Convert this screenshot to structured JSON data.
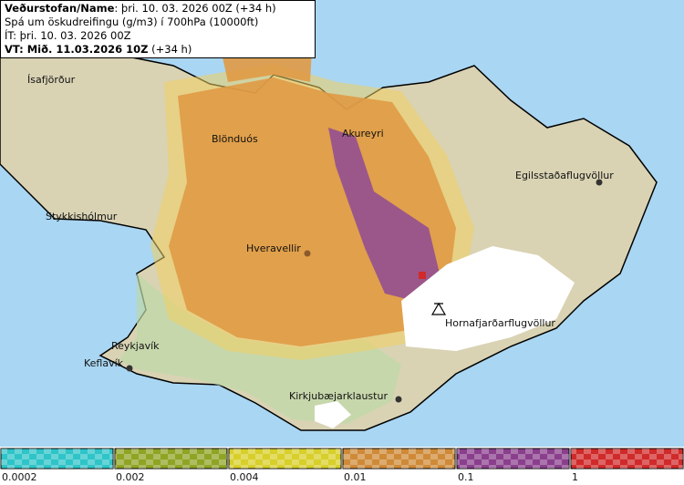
{
  "header": {
    "line1_name": "Veðurstofan/Name",
    "line1_time": ": þri. 10. 03. 2026 00Z (+34 h)",
    "line2": "Spá um öskudreifingu (g/m3) í 700hPa (10000ft)",
    "line3": "ÍT: þri. 10. 03. 2026 00Z",
    "line4_valid": "VT: Mið. 11.03.2026 10Z",
    "line4_lead": " (+34 h)"
  },
  "places": [
    {
      "label": "Ísafjörður"
    },
    {
      "label": "Blönduós"
    },
    {
      "label": "Akureyri"
    },
    {
      "label": "Egilsstaðaflugvöllur"
    },
    {
      "label": "Stykkishólmur"
    },
    {
      "label": "Hveravellir"
    },
    {
      "label": "Reykjavík"
    },
    {
      "label": "Keflavík"
    },
    {
      "label": "Hornafjarðarflugvöllur"
    },
    {
      "label": "Kirkjubæjarklaustur"
    }
  ],
  "legend": {
    "colors": [
      "#2ec4c8",
      "#8fa424",
      "#d8cf2a",
      "#cf8a38",
      "#8a3f8c",
      "#d02a2a"
    ],
    "labels": [
      "0.0002",
      "0.002",
      "0.004",
      "0.01",
      "0.1",
      "1"
    ]
  }
}
